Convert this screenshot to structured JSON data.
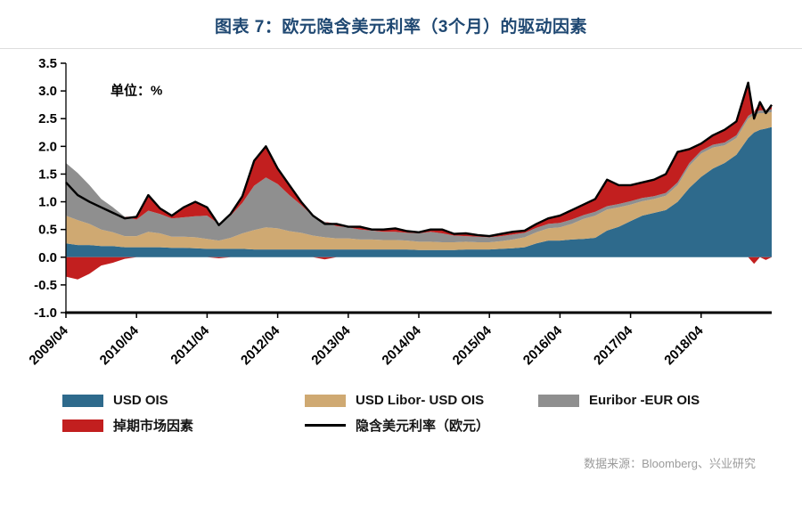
{
  "header": {
    "title": "图表 7：欧元隐含美元利率（3个月）的驱动因素"
  },
  "footer": {
    "source": "数据来源：Bloomberg、兴业研究"
  },
  "colors": {
    "title": "#1f4872",
    "usd_ois": "#2e6a8c",
    "libor_ois": "#cfa972",
    "euribor_ois": "#8f8f8f",
    "swap_factor": "#c21f1f",
    "implied_line": "#000000",
    "source_text": "#9b9b9b"
  },
  "chart_data": {
    "type": "area",
    "stacked": true,
    "title": "图表 7：欧元隐含美元利率（3个月）的驱动因素",
    "unit_label": "单位：%",
    "grid": false,
    "legend_position": "bottom",
    "ylim": [
      -1.0,
      3.5
    ],
    "y_ticks": [
      3.5,
      3.0,
      2.5,
      2.0,
      1.5,
      1.0,
      0.5,
      0.0,
      -0.5,
      -1.0
    ],
    "x_ticks": [
      "2009/04",
      "2010/04",
      "2011/04",
      "2012/04",
      "2013/04",
      "2014/04",
      "2015/04",
      "2016/04",
      "2017/04",
      "2018/04"
    ],
    "x": [
      "2009/04",
      "2009/06",
      "2009/08",
      "2009/10",
      "2009/12",
      "2010/02",
      "2010/04",
      "2010/06",
      "2010/08",
      "2010/10",
      "2010/12",
      "2011/02",
      "2011/04",
      "2011/06",
      "2011/08",
      "2011/10",
      "2011/12",
      "2012/02",
      "2012/04",
      "2012/06",
      "2012/08",
      "2012/10",
      "2012/12",
      "2013/02",
      "2013/04",
      "2013/06",
      "2013/08",
      "2013/10",
      "2013/12",
      "2014/02",
      "2014/04",
      "2014/06",
      "2014/08",
      "2014/10",
      "2014/12",
      "2015/02",
      "2015/04",
      "2015/06",
      "2015/08",
      "2015/10",
      "2015/12",
      "2016/02",
      "2016/04",
      "2016/06",
      "2016/08",
      "2016/10",
      "2016/12",
      "2017/02",
      "2017/04",
      "2017/06",
      "2017/08",
      "2017/10",
      "2017/12",
      "2018/02",
      "2018/04",
      "2018/06",
      "2018/08",
      "2018/10",
      "2018/12",
      "2019/01",
      "2019/02",
      "2019/03",
      "2019/04"
    ],
    "series": [
      {
        "name": "USD OIS",
        "color": "#2e6a8c",
        "values": [
          0.25,
          0.22,
          0.22,
          0.2,
          0.2,
          0.18,
          0.18,
          0.18,
          0.18,
          0.17,
          0.17,
          0.16,
          0.15,
          0.15,
          0.15,
          0.15,
          0.14,
          0.14,
          0.14,
          0.14,
          0.14,
          0.14,
          0.14,
          0.14,
          0.14,
          0.14,
          0.14,
          0.14,
          0.14,
          0.14,
          0.13,
          0.13,
          0.13,
          0.13,
          0.14,
          0.14,
          0.14,
          0.15,
          0.16,
          0.18,
          0.25,
          0.3,
          0.3,
          0.32,
          0.33,
          0.35,
          0.48,
          0.55,
          0.65,
          0.75,
          0.8,
          0.85,
          1.0,
          1.25,
          1.45,
          1.6,
          1.7,
          1.85,
          2.15,
          2.25,
          2.3,
          2.32,
          2.35
        ]
      },
      {
        "name": "USD Libor- USD OIS",
        "color": "#cfa972",
        "values": [
          0.5,
          0.45,
          0.38,
          0.3,
          0.25,
          0.2,
          0.2,
          0.28,
          0.25,
          0.2,
          0.2,
          0.2,
          0.18,
          0.15,
          0.2,
          0.28,
          0.35,
          0.4,
          0.38,
          0.33,
          0.3,
          0.25,
          0.22,
          0.2,
          0.2,
          0.18,
          0.18,
          0.17,
          0.17,
          0.16,
          0.15,
          0.15,
          0.14,
          0.14,
          0.14,
          0.13,
          0.13,
          0.14,
          0.16,
          0.18,
          0.2,
          0.22,
          0.24,
          0.28,
          0.36,
          0.4,
          0.38,
          0.35,
          0.3,
          0.26,
          0.25,
          0.26,
          0.3,
          0.4,
          0.42,
          0.38,
          0.32,
          0.3,
          0.35,
          0.32,
          0.3,
          0.28,
          0.27
        ]
      },
      {
        "name": "Euribor -EUR OIS",
        "color": "#8f8f8f",
        "values": [
          0.95,
          0.85,
          0.7,
          0.55,
          0.45,
          0.35,
          0.3,
          0.38,
          0.35,
          0.33,
          0.35,
          0.38,
          0.42,
          0.3,
          0.4,
          0.55,
          0.8,
          0.9,
          0.8,
          0.65,
          0.5,
          0.35,
          0.28,
          0.22,
          0.2,
          0.18,
          0.16,
          0.15,
          0.15,
          0.14,
          0.15,
          0.18,
          0.16,
          0.12,
          0.1,
          0.1,
          0.09,
          0.09,
          0.09,
          0.08,
          0.08,
          0.08,
          0.08,
          0.08,
          0.07,
          0.07,
          0.06,
          0.06,
          0.06,
          0.06,
          0.05,
          0.05,
          0.05,
          0.05,
          0.05,
          0.05,
          0.05,
          0.05,
          0.05,
          0.05,
          0.05,
          0.05,
          0.05
        ]
      },
      {
        "name": "掉期市场因素",
        "color": "#c21f1f",
        "values": [
          -0.35,
          -0.4,
          -0.3,
          -0.15,
          -0.1,
          -0.03,
          0.05,
          0.28,
          0.1,
          0.05,
          0.18,
          0.26,
          0.15,
          -0.02,
          0.03,
          0.12,
          0.45,
          0.56,
          0.28,
          0.18,
          0.06,
          0.01,
          -0.04,
          0.04,
          0.01,
          0.05,
          0.02,
          0.04,
          0.06,
          0.03,
          0.02,
          0.04,
          0.07,
          0.03,
          0.05,
          0.03,
          0.02,
          0.04,
          0.05,
          0.04,
          0.07,
          0.1,
          0.13,
          0.17,
          0.19,
          0.23,
          0.48,
          0.34,
          0.29,
          0.28,
          0.3,
          0.34,
          0.55,
          0.25,
          0.13,
          0.17,
          0.23,
          0.25,
          0.6,
          -0.12,
          0.15,
          -0.05,
          0.08
        ]
      }
    ],
    "line_series": {
      "name": "隐含美元利率（欧元）",
      "color": "#000000",
      "note": "sum of the four stacked components",
      "values": [
        1.35,
        1.12,
        1.0,
        0.9,
        0.8,
        0.7,
        0.73,
        1.12,
        0.88,
        0.75,
        0.9,
        1.0,
        0.9,
        0.58,
        0.78,
        1.1,
        1.74,
        2.0,
        1.6,
        1.3,
        1.0,
        0.75,
        0.6,
        0.6,
        0.55,
        0.55,
        0.5,
        0.5,
        0.52,
        0.47,
        0.45,
        0.5,
        0.5,
        0.42,
        0.43,
        0.4,
        0.38,
        0.42,
        0.46,
        0.48,
        0.6,
        0.7,
        0.75,
        0.85,
        0.95,
        1.05,
        1.4,
        1.3,
        1.3,
        1.35,
        1.4,
        1.5,
        1.9,
        1.95,
        2.05,
        2.2,
        2.3,
        2.45,
        3.15,
        2.5,
        2.8,
        2.6,
        2.75
      ]
    }
  }
}
